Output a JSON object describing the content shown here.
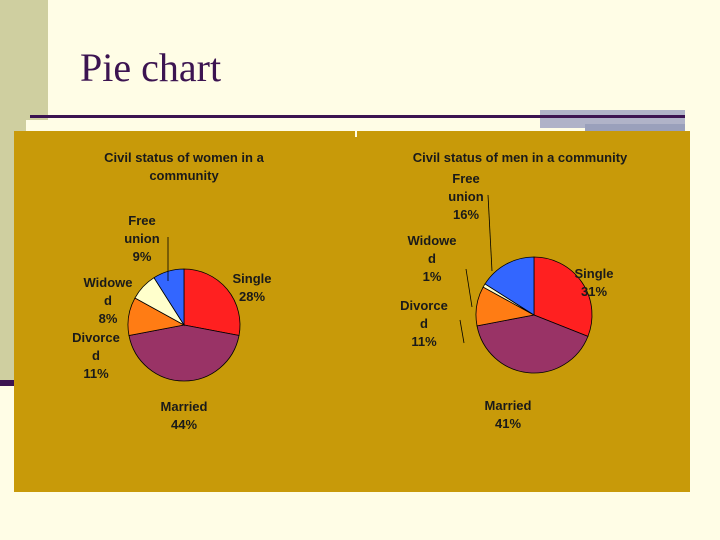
{
  "slide": {
    "title": "Pie chart"
  },
  "chart_data": [
    {
      "type": "pie",
      "title_lines": [
        "Civil status of women in a",
        "community"
      ],
      "start_angle": 90,
      "slices": [
        {
          "label_lines": [
            "Single",
            "28%"
          ],
          "value": 28,
          "color": "#ff2020"
        },
        {
          "label_lines": [
            "Married",
            "44%"
          ],
          "value": 44,
          "color": "#993366"
        },
        {
          "label_lines": [
            "Divorce",
            "d",
            "11%"
          ],
          "value": 11,
          "color": "#ff7c14"
        },
        {
          "label_lines": [
            "Widowe",
            "d",
            "8%"
          ],
          "value": 8,
          "color": "#ffffcc"
        },
        {
          "label_lines": [
            "Free",
            "union",
            "9%"
          ],
          "value": 9,
          "color": "#3366ff"
        }
      ]
    },
    {
      "type": "pie",
      "title_lines": [
        "Civil status of men in a community"
      ],
      "start_angle": 90,
      "slices": [
        {
          "label_lines": [
            "Single",
            "31%"
          ],
          "value": 31,
          "color": "#ff2020"
        },
        {
          "label_lines": [
            "Married",
            "41%"
          ],
          "value": 41,
          "color": "#993366"
        },
        {
          "label_lines": [
            "Divorce",
            "d",
            "11%"
          ],
          "value": 11,
          "color": "#ff7c14"
        },
        {
          "label_lines": [
            "Widowe",
            "d",
            "1%"
          ],
          "value": 1,
          "color": "#ffffcc"
        },
        {
          "label_lines": [
            "Free",
            "union",
            "16%"
          ],
          "value": 16,
          "color": "#3366ff"
        }
      ]
    }
  ]
}
